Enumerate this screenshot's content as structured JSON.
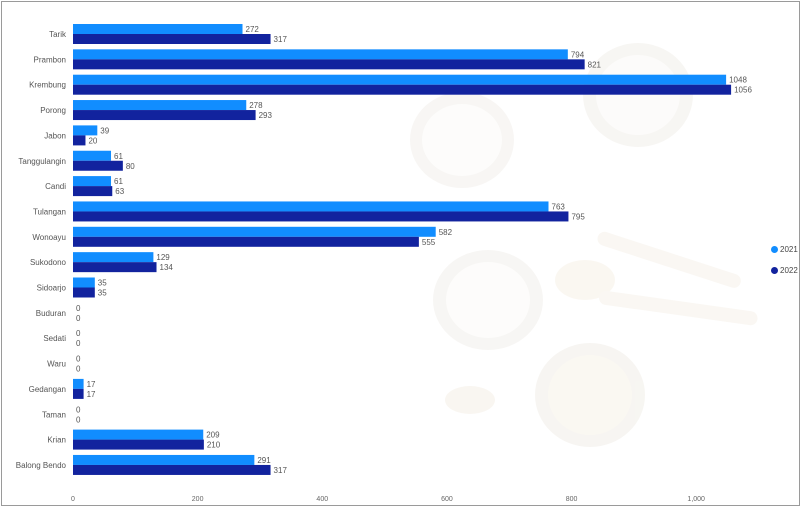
{
  "chart_data": {
    "type": "bar",
    "orientation": "horizontal",
    "categories": [
      "Tarik",
      "Prambon",
      "Krembung",
      "Porong",
      "Jabon",
      "Tanggulangin",
      "Candi",
      "Tulangan",
      "Wonoayu",
      "Sukodono",
      "Sidoarjo",
      "Buduran",
      "Sedati",
      "Waru",
      "Gedangan",
      "Taman",
      "Krian",
      "Balong Bendo"
    ],
    "series": [
      {
        "name": "2021",
        "color": "#118dff",
        "values": [
          272,
          794,
          1048,
          278,
          39,
          61,
          61,
          763,
          582,
          129,
          35,
          0,
          0,
          0,
          17,
          0,
          209,
          291
        ]
      },
      {
        "name": "2022",
        "color": "#12239e",
        "values": [
          317,
          821,
          1056,
          293,
          20,
          80,
          63,
          795,
          555,
          134,
          35,
          0,
          0,
          0,
          17,
          0,
          210,
          317
        ]
      }
    ],
    "xticks": [
      "0",
      "200",
      "400",
      "600",
      "800",
      "1,000"
    ],
    "xlim": [
      0,
      1100
    ],
    "title": "",
    "xlabel": "",
    "ylabel": "",
    "legend_position": "right",
    "grid": false
  }
}
